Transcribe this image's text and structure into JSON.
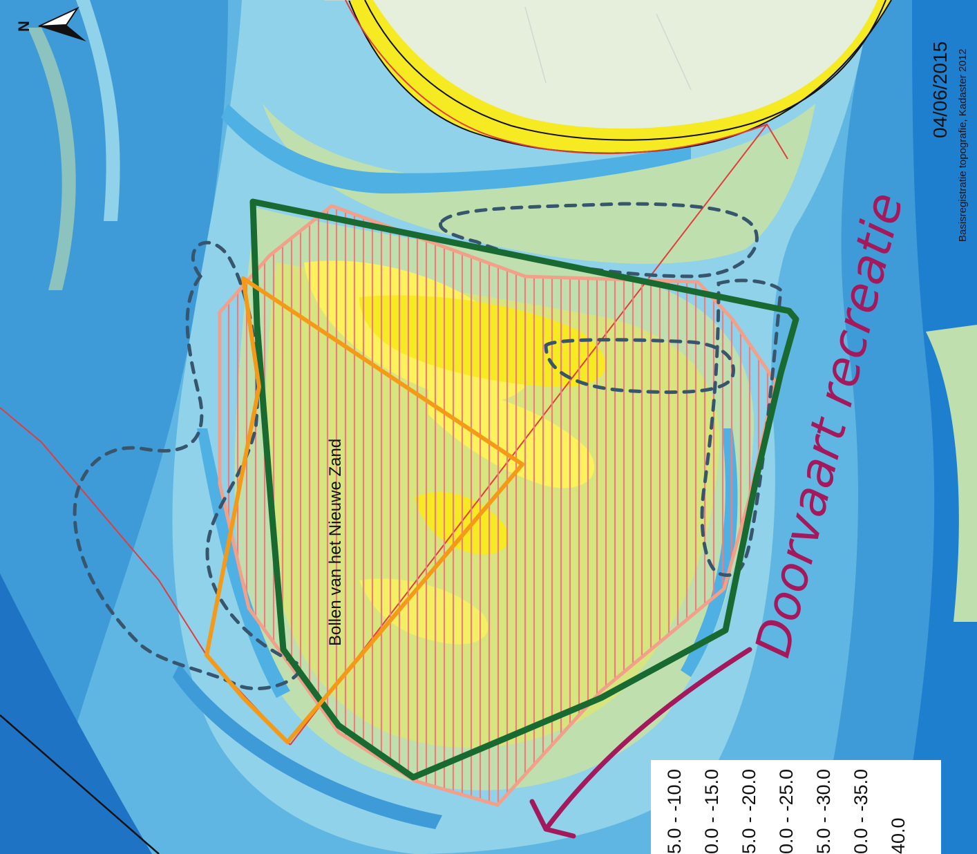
{
  "map": {
    "area_label": "Bollen van het Nieuwe Zand",
    "annotation": "Doorvaart recreatie",
    "date": "04/06/2015",
    "credit": "Basisregistratie topografie, Kadaster 2012",
    "north_label": "N",
    "legend": {
      "rows": [
        "5.0 - -10.0",
        "0.0 - -15.0",
        "5.0 - -20.0",
        "0.0 - -25.0",
        "5.0 - -30.0",
        "0.0 - -35.0",
        "40.0"
      ]
    },
    "colors": {
      "deep_water": "#1f7fcf",
      "mid_water": "#4fb0e4",
      "shallow_water": "#8fd2ea",
      "flat": "#bfe0ae",
      "high_flat": "#d7e57e",
      "dry_sand": "#fbf25c",
      "beach": "#f6ea22",
      "land": "#e6efdc",
      "hatch": "#f48c8c",
      "green_outline": "#196a30",
      "orange_outline": "#f49a18",
      "dashed_outline": "#37556d",
      "red_line": "#e23c3c",
      "annotation": "#a3195b",
      "legend_bg": "#ffffff"
    },
    "icons": [
      "north-arrow-icon",
      "annotation-arrow-icon"
    ]
  }
}
